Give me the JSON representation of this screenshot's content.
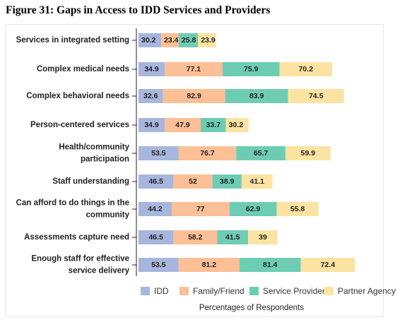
{
  "figure_title": "Figure 31: Gaps in Access to IDD Services and Providers",
  "chart_data": {
    "type": "bar",
    "orientation": "horizontal",
    "stacked": true,
    "title": "",
    "xlabel": "Percentages of Respondents",
    "ylabel": "",
    "categories": [
      [
        "Services in integrated setting"
      ],
      [
        "Complex medical needs"
      ],
      [
        "Complex behavioral needs"
      ],
      [
        "Person-centered services"
      ],
      [
        "Health/community",
        "participation"
      ],
      [
        "Staff understanding"
      ],
      [
        "Can afford to do things in the",
        "community"
      ],
      [
        "Assessments capture need"
      ],
      [
        "Enough staff for effective",
        "service delivery"
      ]
    ],
    "series": [
      {
        "name": "IDD",
        "color": "#a7b6dd",
        "values": [
          30.2,
          34.9,
          32.6,
          34.9,
          53.5,
          46.5,
          44.2,
          46.5,
          53.5
        ]
      },
      {
        "name": "Family/Friend",
        "color": "#fdbf95",
        "values": [
          23.4,
          77.1,
          82.9,
          47.9,
          76.7,
          52,
          77,
          58.2,
          81.2
        ]
      },
      {
        "name": "Service Provider",
        "color": "#6dcdb4",
        "values": [
          25.8,
          75.9,
          83.9,
          33.7,
          65.7,
          38.9,
          62.9,
          41.5,
          81.4
        ]
      },
      {
        "name": "Partner Agency",
        "color": "#fde3a2",
        "values": [
          23.9,
          70.2,
          74.5,
          30.2,
          59.9,
          41.1,
          55.8,
          39,
          72.4
        ]
      }
    ],
    "value_labels": [
      [
        "30.2",
        "23.4",
        "25.8",
        "23.9"
      ],
      [
        "34.9",
        "77.1",
        "75.9",
        "70.2"
      ],
      [
        "32.6",
        "82.9",
        "83.9",
        "74.5"
      ],
      [
        "34.9",
        "47.9",
        "33.7",
        "30.2"
      ],
      [
        "53.5",
        "76.7",
        "65.7",
        "59.9"
      ],
      [
        "46.5",
        "52",
        "38.9",
        "41.1"
      ],
      [
        "44.2",
        "77",
        "62.9",
        "55.8"
      ],
      [
        "46.5",
        "58.2",
        "41.5",
        "39"
      ],
      [
        "53.5",
        "81.2",
        "81.4",
        "72.4"
      ]
    ],
    "legend_position": "bottom",
    "grid": false
  }
}
